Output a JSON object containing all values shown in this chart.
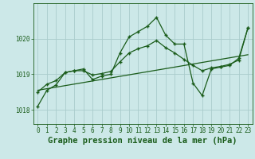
{
  "title": "Graphe pression niveau de la mer (hPa)",
  "x_ticks": [
    0,
    1,
    2,
    3,
    4,
    5,
    6,
    7,
    8,
    9,
    10,
    11,
    12,
    13,
    14,
    15,
    16,
    17,
    18,
    19,
    20,
    21,
    22,
    23
  ],
  "xlim": [
    -0.5,
    23.5
  ],
  "ylim": [
    1017.6,
    1021.0
  ],
  "yticks": [
    1018,
    1019,
    1020
  ],
  "background_color": "#cce8e8",
  "grid_color": "#aacccc",
  "line_color": "#1a5c1a",
  "line1_x": [
    0,
    1,
    2,
    3,
    4,
    5,
    6,
    7,
    8,
    9,
    10,
    11,
    12,
    13,
    14,
    15,
    16,
    17,
    18,
    19,
    20,
    21,
    22,
    23
  ],
  "line1_y": [
    1018.1,
    1018.55,
    1018.7,
    1019.05,
    1019.1,
    1019.15,
    1018.85,
    1018.95,
    1019.0,
    1019.6,
    1020.05,
    1020.2,
    1020.35,
    1020.6,
    1020.1,
    1019.85,
    1019.85,
    1018.75,
    1018.4,
    1019.15,
    1019.2,
    1019.25,
    1019.45,
    1020.3
  ],
  "line2_x": [
    0,
    1,
    2,
    3,
    4,
    5,
    6,
    7,
    8,
    9,
    10,
    11,
    12,
    13,
    14,
    15,
    16,
    17,
    18,
    19,
    20,
    21,
    22,
    23
  ],
  "line2_y": [
    1018.5,
    1018.72,
    1018.82,
    1019.05,
    1019.1,
    1019.1,
    1018.98,
    1019.02,
    1019.08,
    1019.35,
    1019.6,
    1019.72,
    1019.8,
    1019.95,
    1019.75,
    1019.6,
    1019.42,
    1019.25,
    1019.1,
    1019.18,
    1019.22,
    1019.28,
    1019.4,
    1020.3
  ],
  "line3_x": [
    0,
    23
  ],
  "line3_y": [
    1018.55,
    1019.55
  ],
  "text_color": "#1a5c1a",
  "title_fontsize": 7.5,
  "tick_fontsize": 5.5
}
